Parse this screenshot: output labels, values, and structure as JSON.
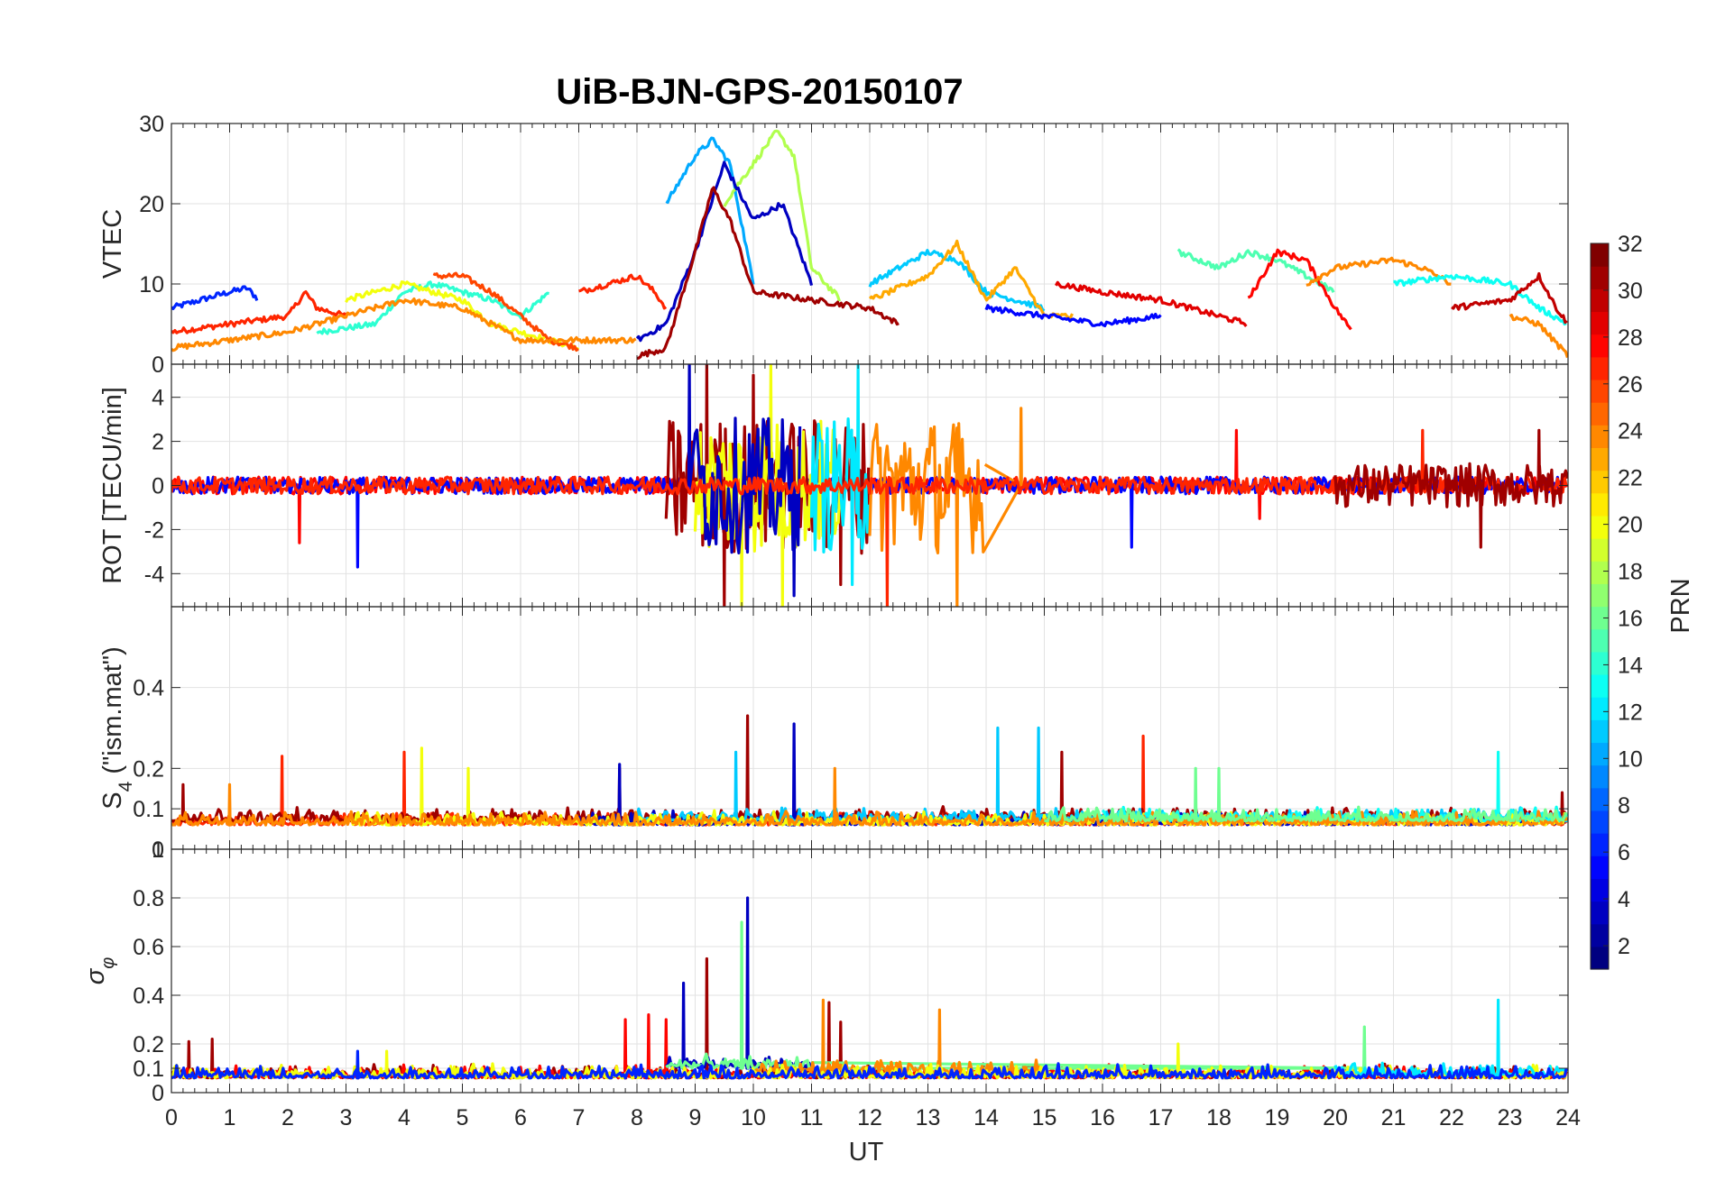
{
  "figure": {
    "title": "UiB-BJN-GPS-20150107",
    "xlabel": "UT",
    "colorbar": {
      "label": "PRN",
      "ticks": [
        "2",
        "4",
        "6",
        "8",
        "10",
        "12",
        "14",
        "16",
        "18",
        "20",
        "22",
        "24",
        "26",
        "28",
        "30",
        "32"
      ],
      "range": [
        1,
        32
      ],
      "colormap": "jet"
    }
  },
  "chart_data": [
    {
      "type": "line",
      "ylabel": "VTEC",
      "xlim": [
        0,
        24
      ],
      "ylim": [
        0,
        30
      ],
      "yticks": [
        "0",
        "10",
        "20",
        "30"
      ],
      "grid": true,
      "series": [
        {
          "color_prn": 6,
          "x": [
            0,
            0.5,
            1,
            1.3,
            1.5
          ],
          "y": [
            7,
            8,
            9,
            9.5,
            8
          ]
        },
        {
          "color_prn": 27,
          "x": [
            0,
            1,
            2,
            2.3,
            2.5,
            3
          ],
          "y": [
            4,
            5,
            6,
            9,
            7,
            6
          ]
        },
        {
          "color_prn": 14,
          "x": [
            2.5,
            3,
            3.5,
            4,
            4.5,
            5,
            5.5,
            6,
            6.5
          ],
          "y": [
            4,
            4.5,
            5,
            9,
            10,
            9,
            8,
            6,
            9
          ]
        },
        {
          "color_prn": 20,
          "x": [
            3,
            3.5,
            4,
            4.5,
            5,
            5.5,
            6,
            6.5,
            7
          ],
          "y": [
            8,
            9,
            10,
            9,
            8,
            5,
            4,
            3,
            2
          ]
        },
        {
          "color_prn": 26,
          "x": [
            4.5,
            5,
            5.5,
            6,
            6.5,
            7
          ],
          "y": [
            11,
            11,
            9,
            6,
            3,
            2
          ]
        },
        {
          "color_prn": 24,
          "x": [
            0,
            1,
            2,
            4,
            5,
            6,
            7,
            8
          ],
          "y": [
            2,
            3,
            4,
            8,
            7,
            3,
            3,
            3
          ]
        },
        {
          "color_prn": 27,
          "x": [
            7,
            7.5,
            8,
            8.3,
            8.5
          ],
          "y": [
            9,
            10,
            11,
            9,
            7
          ]
        },
        {
          "color_prn": 10,
          "x": [
            8.5,
            9,
            9.3,
            9.6,
            10
          ],
          "y": [
            20,
            26,
            28,
            25,
            10
          ]
        },
        {
          "color_prn": 18,
          "x": [
            9.5,
            10,
            10.4,
            10.7,
            11,
            11.5
          ],
          "y": [
            20,
            25,
            29,
            26,
            12,
            8
          ]
        },
        {
          "color_prn": 3,
          "x": [
            8,
            8.5,
            9,
            9.5,
            10,
            10.5,
            11
          ],
          "y": [
            3,
            5,
            14,
            25,
            18,
            20,
            10
          ]
        },
        {
          "color_prn": 31,
          "x": [
            8,
            8.5,
            9,
            9.3,
            9.6,
            10,
            11,
            12,
            12.5
          ],
          "y": [
            1,
            2,
            14,
            22,
            18,
            9,
            8,
            7,
            5
          ]
        },
        {
          "color_prn": 11,
          "x": [
            12,
            12.5,
            13,
            13.5,
            14,
            14.5,
            15
          ],
          "y": [
            10,
            12,
            14,
            13,
            9,
            8,
            7
          ]
        },
        {
          "color_prn": 23,
          "x": [
            12,
            13,
            13.5,
            14,
            14.5,
            15,
            15.5
          ],
          "y": [
            8,
            11,
            15,
            8,
            12,
            6,
            6
          ]
        },
        {
          "color_prn": 5,
          "x": [
            14,
            15,
            16,
            17
          ],
          "y": [
            7,
            6,
            5,
            6
          ]
        },
        {
          "color_prn": 29,
          "x": [
            15.2,
            16,
            17,
            18,
            18.5
          ],
          "y": [
            10,
            9,
            8,
            6,
            5
          ]
        },
        {
          "color_prn": 15,
          "x": [
            17.3,
            18,
            18.5,
            19,
            20
          ],
          "y": [
            14,
            12,
            14,
            13,
            9
          ]
        },
        {
          "color_prn": 28,
          "x": [
            18.5,
            19,
            19.5,
            20,
            20.3
          ],
          "y": [
            8,
            14,
            13,
            7,
            4
          ]
        },
        {
          "color_prn": 24,
          "x": [
            19.5,
            20,
            21,
            21.5,
            22
          ],
          "y": [
            10,
            12,
            13,
            12,
            10
          ]
        },
        {
          "color_prn": 13,
          "x": [
            21,
            22,
            23,
            23.5,
            24
          ],
          "y": [
            10,
            11,
            10,
            7,
            5
          ]
        },
        {
          "color_prn": 30,
          "x": [
            22,
            23,
            23.5,
            23.8,
            24
          ],
          "y": [
            7,
            8,
            11,
            7,
            5
          ]
        },
        {
          "color_prn": 24,
          "x": [
            23,
            23.5,
            24
          ],
          "y": [
            6,
            5,
            1
          ]
        }
      ]
    },
    {
      "type": "line",
      "ylabel": "ROT [TECU/min]",
      "xlim": [
        0,
        24
      ],
      "ylim": [
        -5.5,
        5.5
      ],
      "yticks": [
        "-4",
        "-2",
        "0",
        "2",
        "4"
      ],
      "grid": true,
      "series": [
        {
          "color_prn": 28,
          "x": [
            0,
            24
          ],
          "y": [
            0,
            0
          ],
          "noise": "low",
          "spikes": [
            [
              2.2,
              -2.6
            ],
            [
              18.3,
              2.5
            ],
            [
              18.7,
              -1.5
            ]
          ]
        },
        {
          "color_prn": 5,
          "x": [
            0,
            24
          ],
          "y": [
            0,
            0
          ],
          "noise": "low",
          "spikes": [
            [
              3.2,
              -3.7
            ],
            [
              16.5,
              -2.8
            ]
          ]
        },
        {
          "color_prn": 31,
          "x": [
            8.5,
            12
          ],
          "y": [
            0,
            0
          ],
          "noise": "high",
          "spikes": [
            [
              9.2,
              5.5
            ],
            [
              9.5,
              -5.5
            ],
            [
              10,
              5
            ],
            [
              11.5,
              -4.5
            ]
          ]
        },
        {
          "color_prn": 20,
          "x": [
            9,
            11.5
          ],
          "y": [
            0,
            0
          ],
          "noise": "high",
          "spikes": [
            [
              9.8,
              -5.5
            ],
            [
              10.3,
              5.5
            ],
            [
              10.5,
              -5.5
            ]
          ]
        },
        {
          "color_prn": 3,
          "x": [
            9,
            10.8
          ],
          "y": [
            0,
            0
          ],
          "noise": "high",
          "spikes": [
            [
              8.9,
              5.5
            ],
            [
              10.7,
              -5
            ]
          ]
        },
        {
          "color_prn": 12,
          "x": [
            11,
            12
          ],
          "y": [
            0,
            0
          ],
          "noise": "high",
          "spikes": [
            [
              11.8,
              5.5
            ],
            [
              11.7,
              -4.5
            ]
          ]
        },
        {
          "color_prn": 24,
          "x": [
            12,
            14
          ],
          "y": [
            0,
            0
          ],
          "noise": "high",
          "spikes": [
            [
              13.5,
              -5.5
            ],
            [
              14.6,
              3.5
            ]
          ]
        },
        {
          "color_prn": 27,
          "x": [
            0,
            24
          ],
          "y": [
            0,
            0
          ],
          "noise": "low",
          "spikes": [
            [
              12.3,
              -5.5
            ],
            [
              21.5,
              2.5
            ]
          ]
        },
        {
          "color_prn": 31,
          "x": [
            20,
            24
          ],
          "y": [
            0,
            0
          ],
          "noise": "med",
          "spikes": [
            [
              22.5,
              -2.8
            ],
            [
              23.5,
              2.5
            ]
          ]
        }
      ]
    },
    {
      "type": "line",
      "ylabel": "S_4 (\"ism.mat\")",
      "xlim": [
        0,
        24
      ],
      "ylim": [
        0,
        0.6
      ],
      "yticks": [
        "0.1",
        "0.2",
        "0.4"
      ],
      "extra_tick_labels": [
        "0",
        "1"
      ],
      "grid": true,
      "series": [
        {
          "color_prn": 27,
          "x": [
            0,
            24
          ],
          "y": [
            0.06,
            0.06
          ],
          "spikes": [
            [
              1.9,
              0.23
            ],
            [
              4,
              0.24
            ],
            [
              16.7,
              0.28
            ]
          ]
        },
        {
          "color_prn": 31,
          "x": [
            0,
            24
          ],
          "y": [
            0.07,
            0.07
          ],
          "spikes": [
            [
              0.2,
              0.16
            ],
            [
              7.7,
              0.2
            ],
            [
              9.9,
              0.33
            ],
            [
              15.3,
              0.24
            ],
            [
              23.9,
              0.14
            ]
          ]
        },
        {
          "color_prn": 3,
          "x": [
            7,
            24
          ],
          "y": [
            0.06,
            0.06
          ],
          "spikes": [
            [
              7.7,
              0.21
            ],
            [
              10.7,
              0.31
            ]
          ]
        },
        {
          "color_prn": 11,
          "x": [
            8,
            24
          ],
          "y": [
            0.07,
            0.07
          ],
          "spikes": [
            [
              9.7,
              0.24
            ],
            [
              14.2,
              0.3
            ],
            [
              14.9,
              0.3
            ]
          ]
        },
        {
          "color_prn": 20,
          "x": [
            3,
            24
          ],
          "y": [
            0.06,
            0.06
          ],
          "spikes": [
            [
              4.3,
              0.25
            ],
            [
              5.1,
              0.2
            ]
          ]
        },
        {
          "color_prn": 13,
          "x": [
            16,
            24
          ],
          "y": [
            0.07,
            0.07
          ],
          "spikes": [
            [
              22.8,
              0.24
            ]
          ]
        },
        {
          "color_prn": 24,
          "x": [
            0,
            24
          ],
          "y": [
            0.06,
            0.06
          ],
          "spikes": [
            [
              1,
              0.16
            ],
            [
              11.4,
              0.2
            ]
          ]
        },
        {
          "color_prn": 16,
          "x": [
            15,
            24
          ],
          "y": [
            0.07,
            0.07
          ],
          "spikes": [
            [
              17.6,
              0.2
            ],
            [
              18,
              0.2
            ]
          ]
        }
      ]
    },
    {
      "type": "line",
      "ylabel": "σ_φ",
      "xlim": [
        0,
        24
      ],
      "ylim": [
        0,
        1
      ],
      "yticks": [
        "0",
        "0.1",
        "0.2",
        "0.4",
        "0.6",
        "0.8"
      ],
      "grid": true,
      "series": [
        {
          "color_prn": 31,
          "x": [
            0,
            24
          ],
          "y": [
            0.06,
            0.06
          ],
          "spikes": [
            [
              0.3,
              0.21
            ],
            [
              0.7,
              0.22
            ],
            [
              9.2,
              0.55
            ],
            [
              11.3,
              0.37
            ],
            [
              11.5,
              0.29
            ]
          ]
        },
        {
          "color_prn": 28,
          "x": [
            0,
            24
          ],
          "y": [
            0.06,
            0.06
          ],
          "spikes": [
            [
              7.8,
              0.3
            ],
            [
              8.2,
              0.32
            ],
            [
              8.5,
              0.3
            ]
          ]
        },
        {
          "color_prn": 3,
          "x": [
            8.5,
            11
          ],
          "y": [
            0.1,
            0.1
          ],
          "spikes": [
            [
              8.8,
              0.45
            ],
            [
              9.9,
              0.8
            ]
          ]
        },
        {
          "color_prn": 16,
          "x": [
            8.5,
            11
          ],
          "y": [
            0.1,
            0.1
          ],
          "spikes": [
            [
              9.8,
              0.7
            ],
            [
              20.5,
              0.27
            ]
          ]
        },
        {
          "color_prn": 24,
          "x": [
            10,
            15
          ],
          "y": [
            0.08,
            0.08
          ],
          "spikes": [
            [
              11.2,
              0.38
            ],
            [
              13.2,
              0.34
            ]
          ]
        },
        {
          "color_prn": 20,
          "x": [
            0,
            24
          ],
          "y": [
            0.06,
            0.06
          ],
          "spikes": [
            [
              3.7,
              0.17
            ],
            [
              17.3,
              0.2
            ]
          ]
        },
        {
          "color_prn": 12,
          "x": [
            20,
            24
          ],
          "y": [
            0.07,
            0.07
          ],
          "spikes": [
            [
              22.8,
              0.38
            ]
          ]
        },
        {
          "color_prn": 6,
          "x": [
            0,
            24
          ],
          "y": [
            0.06,
            0.06
          ],
          "spikes": [
            [
              3.2,
              0.17
            ]
          ]
        }
      ]
    }
  ],
  "xticks": [
    "0",
    "1",
    "2",
    "3",
    "4",
    "5",
    "6",
    "7",
    "8",
    "9",
    "10",
    "11",
    "12",
    "13",
    "14",
    "15",
    "16",
    "17",
    "18",
    "19",
    "20",
    "21",
    "22",
    "23",
    "24"
  ]
}
